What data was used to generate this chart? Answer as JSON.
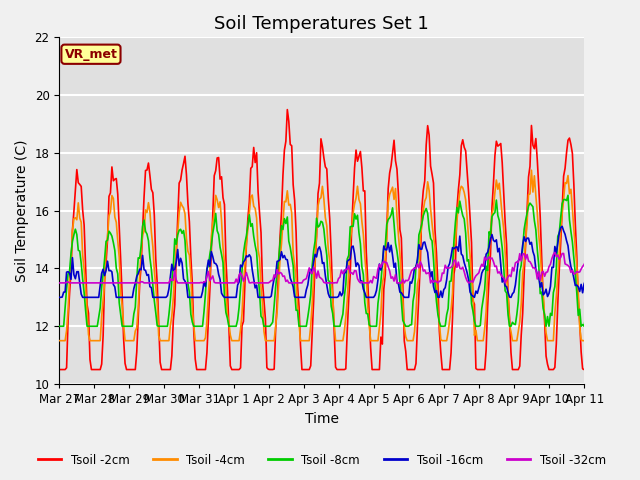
{
  "title": "Soil Temperatures Set 1",
  "xlabel": "Time",
  "ylabel": "Soil Temperature (C)",
  "ylim": [
    10,
    22
  ],
  "yticks": [
    10,
    12,
    14,
    16,
    18,
    20,
    22
  ],
  "x_labels": [
    "Mar 27",
    "Mar 28",
    "Mar 29",
    "Mar 30",
    "Mar 31",
    "Apr 1",
    "Apr 2",
    "Apr 3",
    "Apr 4",
    "Apr 5",
    "Apr 6",
    "Apr 7",
    "Apr 8",
    "Apr 9",
    "Apr 10",
    "Apr 11"
  ],
  "series": [
    {
      "label": "Tsoil -2cm",
      "color": "#ff0000"
    },
    {
      "label": "Tsoil -4cm",
      "color": "#ff8c00"
    },
    {
      "label": "Tsoil -8cm",
      "color": "#00cc00"
    },
    {
      "label": "Tsoil -16cm",
      "color": "#0000cc"
    },
    {
      "label": "Tsoil -32cm",
      "color": "#cc00cc"
    }
  ],
  "annotation_text": "VR_met",
  "annotation_color": "#8b0000",
  "annotation_bg": "#ffff99",
  "background_color": "#e0e0e0",
  "fig_background_color": "#f0f0f0",
  "grid_color": "#ffffff",
  "title_fontsize": 13,
  "axis_fontsize": 10,
  "tick_fontsize": 8.5,
  "n_days": 16
}
